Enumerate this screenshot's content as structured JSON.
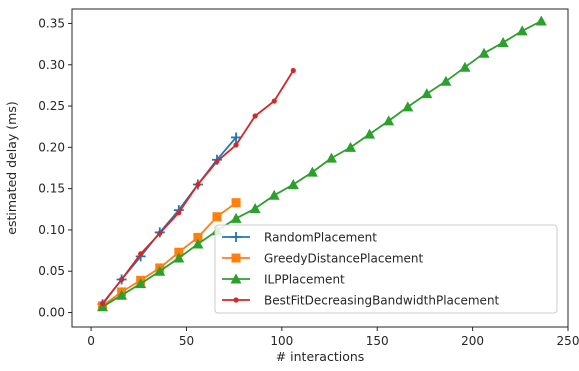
{
  "chart_data": {
    "type": "line",
    "title": "",
    "xlabel": "# interactions",
    "ylabel": "estimated delay (ms)",
    "xlim": [
      -10,
      250
    ],
    "ylim": [
      -0.0175,
      0.3675
    ],
    "xticks": [
      0,
      50,
      100,
      150,
      200,
      250
    ],
    "yticks": [
      0.0,
      0.05,
      0.1,
      0.15,
      0.2,
      0.25,
      0.3,
      0.35
    ],
    "xtick_labels": [
      "0",
      "50",
      "100",
      "150",
      "200",
      "250"
    ],
    "ytick_labels": [
      "0.00",
      "0.05",
      "0.10",
      "0.15",
      "0.20",
      "0.25",
      "0.30",
      "0.35"
    ],
    "grid": false,
    "legend_position": "lower-right",
    "series": [
      {
        "name": "RandomPlacement",
        "color": "#1f77b4",
        "marker": "plus",
        "x": [
          6,
          16,
          26,
          36,
          46,
          56,
          66,
          76
        ],
        "y": [
          0.01,
          0.04,
          0.068,
          0.097,
          0.124,
          0.155,
          0.185,
          0.212
        ]
      },
      {
        "name": "GreedyDistancePlacement",
        "color": "#ff7f0e",
        "marker": "square",
        "x": [
          6,
          16,
          26,
          36,
          46,
          56,
          66,
          76
        ],
        "y": [
          0.008,
          0.025,
          0.039,
          0.054,
          0.073,
          0.091,
          0.116,
          0.133
        ]
      },
      {
        "name": "ILPPlacement",
        "color": "#2ca02c",
        "marker": "triangle",
        "x": [
          6,
          16,
          26,
          36,
          46,
          56,
          66,
          76,
          86,
          96,
          106,
          116,
          126,
          136,
          146,
          156,
          166,
          176,
          186,
          196,
          206,
          216,
          226,
          236
        ],
        "y": [
          0.007,
          0.021,
          0.035,
          0.05,
          0.066,
          0.083,
          0.099,
          0.114,
          0.126,
          0.142,
          0.155,
          0.17,
          0.187,
          0.2,
          0.216,
          0.232,
          0.249,
          0.265,
          0.28,
          0.297,
          0.314,
          0.327,
          0.341,
          0.353
        ]
      },
      {
        "name": "BestFitDecreasingBandwidthPlacement",
        "color": "#d62728",
        "marker": "dot",
        "x": [
          6,
          16,
          26,
          36,
          46,
          56,
          66,
          76,
          86,
          96,
          106
        ],
        "y": [
          0.011,
          0.04,
          0.071,
          0.096,
          0.121,
          0.155,
          0.183,
          0.203,
          0.238,
          0.256,
          0.293
        ]
      }
    ]
  }
}
